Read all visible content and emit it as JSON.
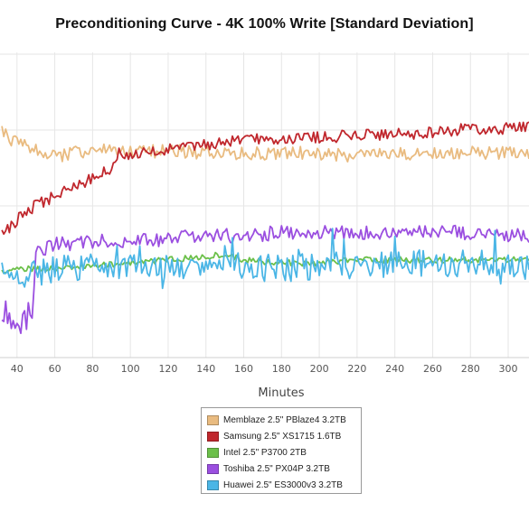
{
  "chart_data": {
    "type": "line",
    "title": "Preconditioning Curve - 4K 100% Write [Standard Deviation]",
    "xlabel": "Minutes",
    "ylabel": "",
    "x_ticks": [
      40,
      60,
      80,
      100,
      120,
      140,
      160,
      180,
      200,
      220,
      240,
      260,
      280,
      300
    ],
    "xlim": [
      31,
      311
    ],
    "ylim": [
      0,
      100
    ],
    "grid": true,
    "legend_position": "bottom-center",
    "series": [
      {
        "name": "Memblaze 2.5\" PBlaze4 3.2TB",
        "color": "#E9BB80",
        "x": [
          32,
          40,
          50,
          60,
          70,
          80,
          90,
          100,
          120,
          140,
          160,
          180,
          200,
          220,
          240,
          260,
          280,
          300,
          310
        ],
        "y": [
          74,
          70,
          68,
          66,
          67,
          68,
          68,
          67,
          68,
          67,
          67,
          67,
          67,
          66,
          67,
          67,
          67,
          67,
          66
        ]
      },
      {
        "name": "Samsung 2.5\" XS1715 1.6TB",
        "color": "#C0272D",
        "x": [
          32,
          40,
          50,
          60,
          70,
          80,
          90,
          95,
          100,
          120,
          140,
          160,
          180,
          200,
          220,
          240,
          260,
          280,
          300,
          310
        ],
        "y": [
          40,
          45,
          50,
          53,
          56,
          59,
          62,
          68,
          66,
          68,
          70,
          71,
          72,
          72,
          73,
          73,
          74,
          75,
          75,
          76
        ]
      },
      {
        "name": "Intel 2.5\" P3700 2TB",
        "color": "#6CC04A",
        "x": [
          32,
          40,
          60,
          80,
          100,
          120,
          140,
          150,
          160,
          180,
          200,
          220,
          240,
          260,
          280,
          300,
          310
        ],
        "y": [
          28,
          29,
          29,
          30,
          31,
          32,
          33,
          34,
          32,
          31,
          31,
          32,
          32,
          32,
          32,
          32,
          32
        ]
      },
      {
        "name": "Toshiba 2.5\" PX04P 3.2TB",
        "color": "#9B4FE0",
        "x": [
          32,
          40,
          48,
          50,
          60,
          80,
          100,
          120,
          140,
          160,
          180,
          200,
          220,
          240,
          260,
          280,
          300,
          310
        ],
        "y": [
          14,
          13,
          12,
          34,
          37,
          38,
          38,
          39,
          40,
          40,
          41,
          41,
          41,
          41,
          41,
          41,
          40,
          40
        ]
      },
      {
        "name": "Huawei 2.5\" ES3000v3 3.2TB",
        "color": "#4BB6E6",
        "x": [
          32,
          40,
          60,
          80,
          100,
          120,
          140,
          160,
          180,
          200,
          220,
          240,
          260,
          280,
          300,
          310
        ],
        "y": [
          27,
          27,
          29,
          30,
          30,
          29,
          30,
          30,
          29,
          30,
          30,
          31,
          31,
          31,
          30,
          30
        ]
      }
    ]
  }
}
